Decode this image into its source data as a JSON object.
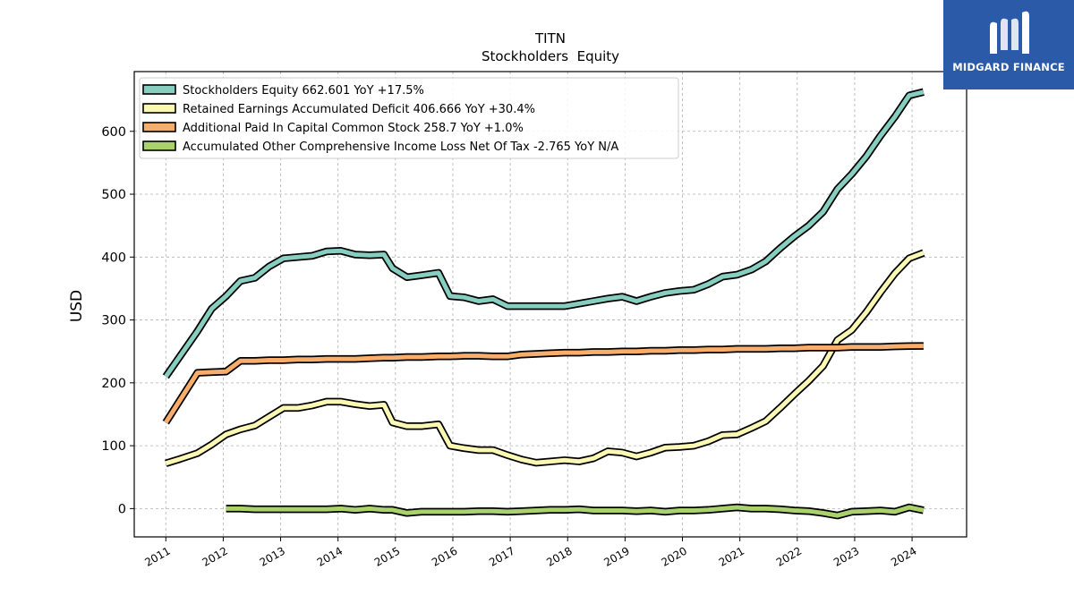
{
  "chart_data": {
    "type": "line",
    "title": "TITN",
    "subtitle": "Stockholders  Equity",
    "ylabel": "USD",
    "xlabel": "",
    "ylim": [
      -45,
      695
    ],
    "xlim": [
      2010.45,
      2024.95
    ],
    "yticks": [
      0,
      100,
      200,
      300,
      400,
      500,
      600
    ],
    "xticks": [
      "2011",
      "2012",
      "2013",
      "2014",
      "2015",
      "2016",
      "2017",
      "2018",
      "2019",
      "2020",
      "2021",
      "2022",
      "2023",
      "2024"
    ],
    "grid": true,
    "legend_position": "upper-left",
    "series": [
      {
        "name": "Stockholders Equity  662.601 YoY +17.5%",
        "color": "#86cfc0",
        "points": [
          [
            2011.0,
            210
          ],
          [
            2011.55,
            282
          ],
          [
            2011.8,
            318
          ],
          [
            2012.05,
            338
          ],
          [
            2012.3,
            362
          ],
          [
            2012.55,
            367
          ],
          [
            2012.8,
            385
          ],
          [
            2013.05,
            398
          ],
          [
            2013.3,
            400
          ],
          [
            2013.55,
            402
          ],
          [
            2013.8,
            409
          ],
          [
            2014.05,
            410
          ],
          [
            2014.3,
            404
          ],
          [
            2014.55,
            403
          ],
          [
            2014.8,
            404
          ],
          [
            2014.95,
            382
          ],
          [
            2015.2,
            368
          ],
          [
            2015.45,
            371
          ],
          [
            2015.75,
            375
          ],
          [
            2015.95,
            338
          ],
          [
            2016.2,
            336
          ],
          [
            2016.45,
            330
          ],
          [
            2016.7,
            333
          ],
          [
            2016.95,
            322
          ],
          [
            2017.2,
            322
          ],
          [
            2017.45,
            322
          ],
          [
            2017.7,
            322
          ],
          [
            2017.95,
            322
          ],
          [
            2018.2,
            326
          ],
          [
            2018.45,
            330
          ],
          [
            2018.7,
            334
          ],
          [
            2018.95,
            337
          ],
          [
            2019.2,
            330
          ],
          [
            2019.45,
            337
          ],
          [
            2019.7,
            343
          ],
          [
            2019.95,
            346
          ],
          [
            2020.2,
            348
          ],
          [
            2020.45,
            357
          ],
          [
            2020.7,
            369
          ],
          [
            2020.95,
            372
          ],
          [
            2021.2,
            380
          ],
          [
            2021.45,
            393
          ],
          [
            2021.7,
            414
          ],
          [
            2021.95,
            433
          ],
          [
            2022.2,
            450
          ],
          [
            2022.45,
            472
          ],
          [
            2022.7,
            508
          ],
          [
            2022.95,
            532
          ],
          [
            2023.2,
            560
          ],
          [
            2023.45,
            593
          ],
          [
            2023.7,
            623
          ],
          [
            2023.95,
            657
          ],
          [
            2024.2,
            662.601
          ]
        ]
      },
      {
        "name": "Retained Earnings Accumulated Deficit  406.666 YoY +30.4%",
        "color": "#fbf8b3",
        "points": [
          [
            2011.0,
            72
          ],
          [
            2011.25,
            79
          ],
          [
            2011.55,
            88
          ],
          [
            2011.8,
            102
          ],
          [
            2012.05,
            118
          ],
          [
            2012.3,
            126
          ],
          [
            2012.55,
            132
          ],
          [
            2012.8,
            146
          ],
          [
            2013.05,
            160
          ],
          [
            2013.3,
            160
          ],
          [
            2013.55,
            164
          ],
          [
            2013.8,
            170
          ],
          [
            2014.05,
            170
          ],
          [
            2014.3,
            166
          ],
          [
            2014.55,
            163
          ],
          [
            2014.8,
            165
          ],
          [
            2014.95,
            137
          ],
          [
            2015.2,
            131
          ],
          [
            2015.45,
            131
          ],
          [
            2015.75,
            134
          ],
          [
            2015.95,
            100
          ],
          [
            2016.2,
            96
          ],
          [
            2016.45,
            93
          ],
          [
            2016.7,
            93
          ],
          [
            2016.95,
            85
          ],
          [
            2017.2,
            78
          ],
          [
            2017.45,
            73
          ],
          [
            2017.7,
            75
          ],
          [
            2017.95,
            77
          ],
          [
            2018.2,
            75
          ],
          [
            2018.45,
            80
          ],
          [
            2018.7,
            91
          ],
          [
            2018.95,
            89
          ],
          [
            2019.2,
            83
          ],
          [
            2019.45,
            89
          ],
          [
            2019.7,
            97
          ],
          [
            2019.95,
            98
          ],
          [
            2020.2,
            100
          ],
          [
            2020.45,
            107
          ],
          [
            2020.7,
            117
          ],
          [
            2020.95,
            118
          ],
          [
            2021.2,
            128
          ],
          [
            2021.45,
            139
          ],
          [
            2021.7,
            160
          ],
          [
            2021.95,
            182
          ],
          [
            2022.2,
            203
          ],
          [
            2022.45,
            227
          ],
          [
            2022.7,
            268
          ],
          [
            2022.95,
            284
          ],
          [
            2023.2,
            312
          ],
          [
            2023.45,
            344
          ],
          [
            2023.7,
            374
          ],
          [
            2023.95,
            398
          ],
          [
            2024.2,
            406.666
          ]
        ]
      },
      {
        "name": "Additional Paid In Capital Common Stock  258.7 YoY +1.0%",
        "color": "#f8ad6a",
        "points": [
          [
            2011.0,
            137
          ],
          [
            2011.55,
            216
          ],
          [
            2011.8,
            217
          ],
          [
            2012.05,
            218
          ],
          [
            2012.3,
            235
          ],
          [
            2012.55,
            235
          ],
          [
            2012.8,
            236
          ],
          [
            2013.05,
            236
          ],
          [
            2013.3,
            237
          ],
          [
            2013.55,
            237
          ],
          [
            2013.8,
            238
          ],
          [
            2014.05,
            238
          ],
          [
            2014.3,
            238
          ],
          [
            2014.55,
            239
          ],
          [
            2014.8,
            240
          ],
          [
            2014.95,
            240
          ],
          [
            2015.2,
            241
          ],
          [
            2015.45,
            241
          ],
          [
            2015.75,
            242
          ],
          [
            2015.95,
            242
          ],
          [
            2016.2,
            243
          ],
          [
            2016.45,
            243
          ],
          [
            2016.7,
            242
          ],
          [
            2016.95,
            242
          ],
          [
            2017.2,
            245
          ],
          [
            2017.45,
            246
          ],
          [
            2017.7,
            247
          ],
          [
            2017.95,
            248
          ],
          [
            2018.2,
            248
          ],
          [
            2018.45,
            249
          ],
          [
            2018.7,
            249
          ],
          [
            2018.95,
            250
          ],
          [
            2019.2,
            250
          ],
          [
            2019.45,
            251
          ],
          [
            2019.7,
            251
          ],
          [
            2019.95,
            252
          ],
          [
            2020.2,
            252
          ],
          [
            2020.45,
            253
          ],
          [
            2020.7,
            253
          ],
          [
            2020.95,
            254
          ],
          [
            2021.2,
            254
          ],
          [
            2021.45,
            254
          ],
          [
            2021.7,
            255
          ],
          [
            2021.95,
            255
          ],
          [
            2022.2,
            256
          ],
          [
            2022.45,
            256
          ],
          [
            2022.7,
            256
          ],
          [
            2022.95,
            257
          ],
          [
            2023.2,
            257
          ],
          [
            2023.45,
            257
          ],
          [
            2023.7,
            258
          ],
          [
            2023.95,
            258.5
          ],
          [
            2024.2,
            258.7
          ]
        ]
      },
      {
        "name": "Accumulated Other Comprehensive Income Loss Net Of Tax  -2.765 YoY N/A",
        "color": "#a9d36a",
        "points": [
          [
            2012.05,
            0
          ],
          [
            2012.3,
            0
          ],
          [
            2012.55,
            -1
          ],
          [
            2012.8,
            -1
          ],
          [
            2013.05,
            -1
          ],
          [
            2013.3,
            -1
          ],
          [
            2013.55,
            -1
          ],
          [
            2013.8,
            -1
          ],
          [
            2014.05,
            0
          ],
          [
            2014.3,
            -2
          ],
          [
            2014.55,
            0
          ],
          [
            2014.8,
            -2
          ],
          [
            2014.95,
            -2
          ],
          [
            2015.2,
            -7
          ],
          [
            2015.45,
            -5
          ],
          [
            2015.75,
            -5
          ],
          [
            2015.95,
            -5
          ],
          [
            2016.2,
            -5
          ],
          [
            2016.45,
            -4
          ],
          [
            2016.7,
            -4
          ],
          [
            2016.95,
            -5
          ],
          [
            2017.2,
            -4
          ],
          [
            2017.45,
            -3
          ],
          [
            2017.7,
            -2
          ],
          [
            2017.95,
            -2
          ],
          [
            2018.2,
            -1
          ],
          [
            2018.45,
            -3
          ],
          [
            2018.7,
            -3
          ],
          [
            2018.95,
            -3
          ],
          [
            2019.2,
            -4
          ],
          [
            2019.45,
            -3
          ],
          [
            2019.7,
            -5
          ],
          [
            2019.95,
            -3
          ],
          [
            2020.2,
            -3
          ],
          [
            2020.45,
            -2
          ],
          [
            2020.7,
            0
          ],
          [
            2020.95,
            2
          ],
          [
            2021.2,
            0
          ],
          [
            2021.45,
            0
          ],
          [
            2021.7,
            -1
          ],
          [
            2021.95,
            -3
          ],
          [
            2022.2,
            -4
          ],
          [
            2022.45,
            -7
          ],
          [
            2022.7,
            -11
          ],
          [
            2022.95,
            -5
          ],
          [
            2023.2,
            -4
          ],
          [
            2023.45,
            -3
          ],
          [
            2023.7,
            -5
          ],
          [
            2023.95,
            2
          ],
          [
            2024.2,
            -2.765
          ]
        ]
      }
    ]
  },
  "logo": {
    "text": "MIDGARD FINANCE",
    "background": "#2a5aa8"
  }
}
